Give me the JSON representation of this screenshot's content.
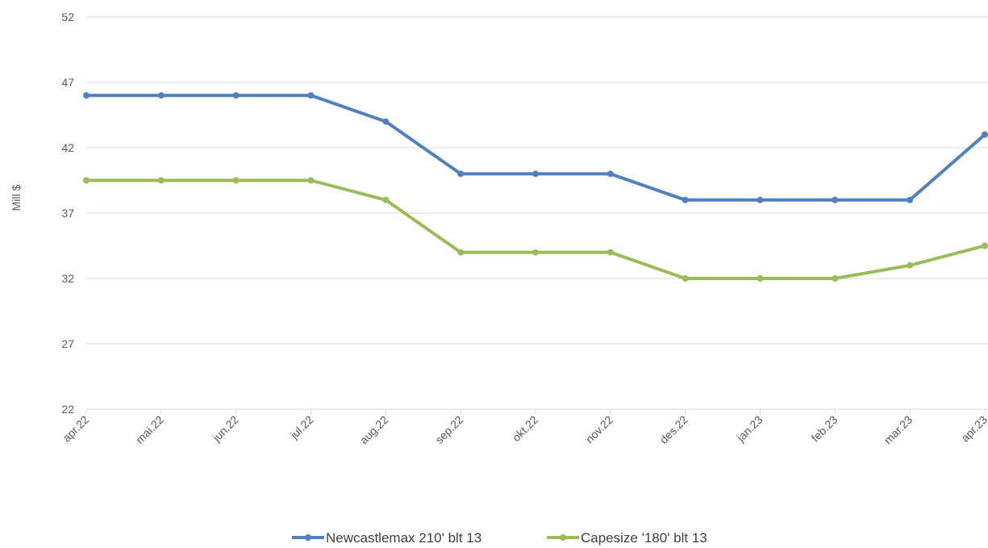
{
  "chart_data": {
    "type": "line",
    "title": "",
    "xlabel": "",
    "ylabel": "Mill $",
    "ylim": [
      22,
      52
    ],
    "yticks": [
      22,
      27,
      32,
      37,
      42,
      47,
      52
    ],
    "grid": true,
    "legend_position": "bottom",
    "categories": [
      "apr.22",
      "mai.22",
      "jun.22",
      "jul.22",
      "aug.22",
      "sep.22",
      "okt.22",
      "nov.22",
      "des.22",
      "jan.23",
      "feb.23",
      "mar.23",
      "apr.23"
    ],
    "series": [
      {
        "name": "Newcastlemax 210' blt 13",
        "color": "#4f81bd",
        "values": [
          46,
          46,
          46,
          46,
          44,
          40,
          40,
          40,
          38,
          38,
          38,
          38,
          43
        ]
      },
      {
        "name": "Capesize '180' blt 13",
        "color": "#9bbb59",
        "values": [
          39.5,
          39.5,
          39.5,
          39.5,
          38,
          34,
          34,
          34,
          32,
          32,
          32,
          33,
          34.5
        ]
      }
    ]
  }
}
